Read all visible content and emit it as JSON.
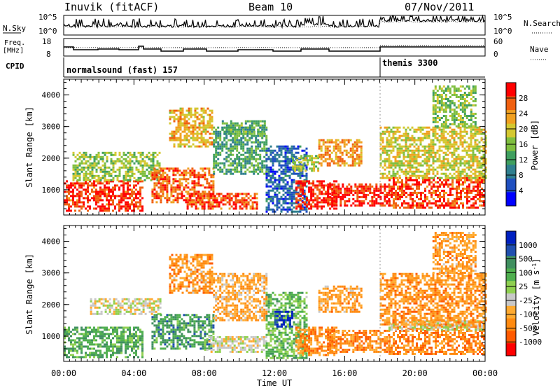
{
  "header": {
    "station": "Inuvik (fitACF)",
    "beam": "Beam 10",
    "date": "07/Nov/2011"
  },
  "summary": {
    "nsky_label": "N.Sky",
    "nsearch_label": "N.Search",
    "nsky_ticks": [
      "10^5",
      "10^0"
    ],
    "nsearch_ticks": [
      "10^5",
      "10^0"
    ],
    "freq_label_1": "Freq.",
    "freq_label_2": "[MHz]",
    "freq_ticks": [
      "18",
      "8"
    ],
    "nave_label": "Nave",
    "nave_ticks": [
      "60",
      "0"
    ],
    "cpid_label": "CPID",
    "modes": [
      {
        "name": "normalsound (fast) 157",
        "start_hour": 0
      },
      {
        "name": "themis 3300",
        "start_hour": 18
      }
    ]
  },
  "chart_data": [
    {
      "type": "heatmap",
      "name": "power",
      "ylabel": "Slant Range [km]",
      "ylim": [
        200,
        4500
      ],
      "yticks": [
        "1000",
        "2000",
        "3000",
        "4000"
      ],
      "xlim": [
        0,
        24
      ],
      "colorbar_label": "Power [dB]",
      "colorbar_ticks": [
        "28",
        "24",
        "20",
        "16",
        "12",
        "8",
        "4"
      ],
      "colors": [
        "#0000ff",
        "#1f4fbf",
        "#2f7f8f",
        "#3f9f5f",
        "#7fbf3f",
        "#d4c830",
        "#f0a020",
        "#f06010",
        "#ff0000"
      ],
      "regions": [
        {
          "x0": 0.0,
          "x1": 4.5,
          "y0": 350,
          "y1": 1300,
          "level": 7.6
        },
        {
          "x0": 0.5,
          "x1": 5.5,
          "y0": 1300,
          "y1": 2200,
          "level": 4.2
        },
        {
          "x0": 5.0,
          "x1": 8.5,
          "y0": 600,
          "y1": 1700,
          "level": 6.8
        },
        {
          "x0": 6.0,
          "x1": 8.5,
          "y0": 2400,
          "y1": 3600,
          "level": 5.6
        },
        {
          "x0": 7.0,
          "x1": 11.0,
          "y0": 400,
          "y1": 900,
          "level": 7.2
        },
        {
          "x0": 8.5,
          "x1": 11.5,
          "y0": 1500,
          "y1": 3000,
          "level": 3.0
        },
        {
          "x0": 9.0,
          "x1": 11.5,
          "y0": 2800,
          "y1": 3200,
          "level": 3.4
        },
        {
          "x0": 11.5,
          "x1": 13.8,
          "y0": 300,
          "y1": 2400,
          "level": 1.4
        },
        {
          "x0": 13.2,
          "x1": 15.5,
          "y0": 400,
          "y1": 1300,
          "level": 7.8
        },
        {
          "x0": 15.0,
          "x1": 18.5,
          "y0": 500,
          "y1": 1200,
          "level": 8.0
        },
        {
          "x0": 18.5,
          "x1": 24.0,
          "y0": 450,
          "y1": 1400,
          "level": 7.4
        },
        {
          "x0": 18.0,
          "x1": 24.0,
          "y0": 1400,
          "y1": 3000,
          "level": 5.0
        },
        {
          "x0": 14.5,
          "x1": 17.0,
          "y0": 1800,
          "y1": 2600,
          "level": 6.2
        },
        {
          "x0": 13.0,
          "x1": 14.5,
          "y0": 1600,
          "y1": 2100,
          "level": 4.4
        },
        {
          "x0": 21.0,
          "x1": 23.5,
          "y0": 3000,
          "y1": 4300,
          "level": 4.0
        }
      ]
    },
    {
      "type": "heatmap",
      "name": "velocity",
      "ylabel": "Slant Range [km]",
      "ylim": [
        200,
        4500
      ],
      "yticks": [
        "1000",
        "2000",
        "3000",
        "4000"
      ],
      "xlabel": "Time UT",
      "xticks": [
        "00:00",
        "04:00",
        "08:00",
        "12:00",
        "16:00",
        "20:00",
        "00:00"
      ],
      "xlim": [
        0,
        24
      ],
      "colorbar_label": "Velocity [m s",
      "colorbar_exp": "-1",
      "colorbar_suffix": "]",
      "colorbar_ticks": [
        "1000",
        "500",
        "100",
        "25",
        "-25",
        "-100",
        "-500",
        "-1000"
      ],
      "colors": [
        "#ff0000",
        "#ff5a00",
        "#ff8a10",
        "#ffaa30",
        "#c8c8c8",
        "#8fd050",
        "#4faf4f",
        "#3f8f5f",
        "#1f4faf",
        "#0020c0"
      ],
      "regions": [
        {
          "x0": 0.0,
          "x1": 4.5,
          "y0": 350,
          "y1": 1300,
          "level": 6.2
        },
        {
          "x0": 1.5,
          "x1": 5.5,
          "y0": 1700,
          "y1": 2200,
          "level": 4.0
        },
        {
          "x0": 5.0,
          "x1": 8.5,
          "y0": 600,
          "y1": 1700,
          "level": 6.5
        },
        {
          "x0": 6.0,
          "x1": 8.5,
          "y0": 2400,
          "y1": 3600,
          "level": 2.4
        },
        {
          "x0": 8.0,
          "x1": 11.5,
          "y0": 500,
          "y1": 1000,
          "level": 4.1
        },
        {
          "x0": 8.5,
          "x1": 11.5,
          "y0": 1500,
          "y1": 3000,
          "level": 2.8
        },
        {
          "x0": 11.5,
          "x1": 13.8,
          "y0": 300,
          "y1": 2400,
          "level": 5.6
        },
        {
          "x0": 12.0,
          "x1": 13.0,
          "y0": 1300,
          "y1": 1800,
          "level": 8.6
        },
        {
          "x0": 13.2,
          "x1": 15.5,
          "y0": 400,
          "y1": 1300,
          "level": 2.2
        },
        {
          "x0": 15.0,
          "x1": 18.5,
          "y0": 500,
          "y1": 1200,
          "level": 2.0
        },
        {
          "x0": 18.5,
          "x1": 24.0,
          "y0": 450,
          "y1": 1400,
          "level": 1.8
        },
        {
          "x0": 18.5,
          "x1": 24.0,
          "y0": 1200,
          "y1": 1500,
          "level": 4.2
        },
        {
          "x0": 18.0,
          "x1": 24.0,
          "y0": 1400,
          "y1": 3000,
          "level": 2.3
        },
        {
          "x0": 14.5,
          "x1": 17.0,
          "y0": 1800,
          "y1": 2600,
          "level": 2.6
        },
        {
          "x0": 21.0,
          "x1": 23.5,
          "y0": 3000,
          "y1": 4300,
          "level": 2.5
        }
      ]
    }
  ]
}
